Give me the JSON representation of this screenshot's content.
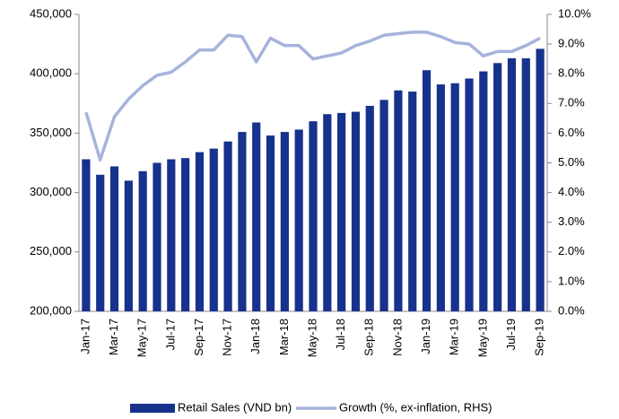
{
  "chart_data": {
    "type": "bar",
    "categories": [
      "Jan-17",
      null,
      "Mar-17",
      null,
      "May-17",
      null,
      "Jul-17",
      null,
      "Sep-17",
      null,
      "Nov-17",
      null,
      "Jan-18",
      null,
      "Mar-18",
      null,
      "May-18",
      null,
      "Jul-18",
      null,
      "Sep-18",
      null,
      "Nov-18",
      null,
      "Jan-19",
      null,
      "Mar-19",
      null,
      "May-19",
      null,
      "Jul-19",
      null,
      "Sep-19"
    ],
    "series": [
      {
        "name": "Retail Sales (VND bn)",
        "color": "#17328c",
        "type": "bar",
        "values": [
          328000,
          315000,
          322000,
          310000,
          318000,
          325000,
          328000,
          329000,
          334000,
          337000,
          343000,
          351000,
          359000,
          348000,
          351000,
          353000,
          360000,
          366000,
          367000,
          368000,
          373000,
          378000,
          386000,
          385000,
          403000,
          391000,
          392000,
          396000,
          402000,
          409000,
          413000,
          413000,
          421000
        ]
      },
      {
        "name": "Growth (%, ex-inflation, RHS)",
        "color": "#a6b3dc",
        "type": "line",
        "axis": "y2",
        "values": [
          6.7,
          5.1,
          6.55,
          7.15,
          7.6,
          7.95,
          8.05,
          8.4,
          8.8,
          8.8,
          9.3,
          9.25,
          8.4,
          9.2,
          8.95,
          8.95,
          8.5,
          8.6,
          8.7,
          8.95,
          9.1,
          9.3,
          9.35,
          9.4,
          9.4,
          9.25,
          9.05,
          9.0,
          8.6,
          8.75,
          8.75,
          8.95,
          9.2
        ]
      }
    ],
    "ylim": [
      200000,
      450000
    ],
    "yticks": [
      {
        "value": 200000,
        "label": "200,000"
      },
      {
        "value": 250000,
        "label": "250,000"
      },
      {
        "value": 300000,
        "label": "300,000"
      },
      {
        "value": 350000,
        "label": "350,000"
      },
      {
        "value": 400000,
        "label": "400,000"
      },
      {
        "value": 450000,
        "label": "450,000"
      }
    ],
    "y2lim": [
      0,
      10
    ],
    "y2ticks": [
      {
        "value": 0,
        "label": "0.0%"
      },
      {
        "value": 1,
        "label": "1.0%"
      },
      {
        "value": 2,
        "label": "2.0%"
      },
      {
        "value": 3,
        "label": "3.0%"
      },
      {
        "value": 4,
        "label": "4.0%"
      },
      {
        "value": 5,
        "label": "5.0%"
      },
      {
        "value": 6,
        "label": "6.0%"
      },
      {
        "value": 7,
        "label": "7.0%"
      },
      {
        "value": 8,
        "label": "8.0%"
      },
      {
        "value": 9,
        "label": "9.0%"
      },
      {
        "value": 10,
        "label": "10.0%"
      }
    ],
    "grid": false,
    "legend": "bottom"
  }
}
